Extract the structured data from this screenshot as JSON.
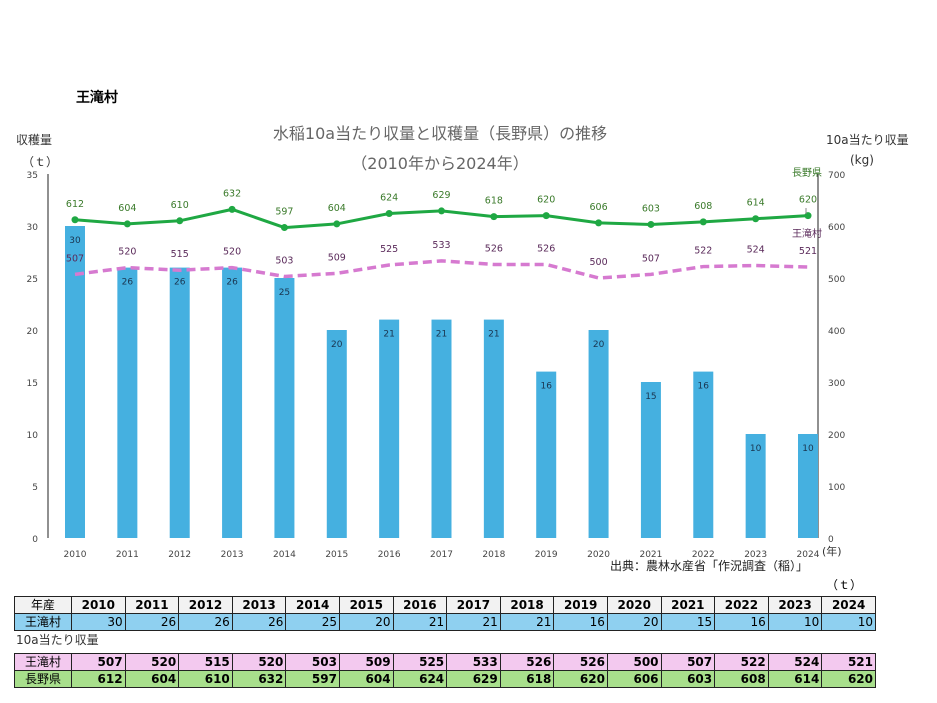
{
  "village_title": "王滝村",
  "chart_data": {
    "type": "bar+line",
    "title": "水稲10a当たり収量と収穫量（長野県）の推移",
    "subtitle": "（2010年から2024年）",
    "ylabel_left": "収穫量",
    "ylabel_left_unit": "（ｔ）",
    "ylabel_right": "10a当たり収量",
    "ylabel_right_unit": "(kg)",
    "xlabel_unit": "(年)",
    "ylim_left": [
      0,
      35
    ],
    "yticks_left": [
      0,
      5,
      10,
      15,
      20,
      25,
      30,
      35
    ],
    "ylim_right": [
      0,
      700
    ],
    "yticks_right": [
      0,
      100,
      200,
      300,
      400,
      500,
      600,
      700
    ],
    "categories": [
      "2010",
      "2011",
      "2012",
      "2013",
      "2014",
      "2015",
      "2016",
      "2017",
      "2018",
      "2019",
      "2020",
      "2021",
      "2022",
      "2023",
      "2024"
    ],
    "series": [
      {
        "name": "王滝村",
        "type": "bar",
        "axis": "left",
        "color": "#45b0e0",
        "values": [
          30,
          26,
          26,
          26,
          25,
          20,
          21,
          21,
          21,
          16,
          20,
          15,
          16,
          10,
          10
        ]
      },
      {
        "name": "長野県",
        "type": "line",
        "axis": "right",
        "color": "#1fa843",
        "label_color": "#3a7a2a",
        "values": [
          612,
          604,
          610,
          632,
          597,
          604,
          624,
          629,
          618,
          620,
          606,
          603,
          608,
          614,
          620
        ]
      },
      {
        "name": "王滝村",
        "type": "dashed-line",
        "axis": "right",
        "color": "#d67ad0",
        "label_color": "#5a2a5a",
        "values": [
          507,
          520,
          515,
          520,
          503,
          509,
          525,
          533,
          526,
          526,
          500,
          507,
          522,
          524,
          521
        ]
      }
    ],
    "grid": false
  },
  "source": "出典：農林水産省「作況調査（稲）」",
  "table": {
    "unit": "（ｔ）",
    "header_label": "年産",
    "harvest_row_label": "王滝村",
    "yield_section_label": "10a当たり収量",
    "yield_village_label": "王滝村",
    "yield_pref_label": "長野県"
  }
}
